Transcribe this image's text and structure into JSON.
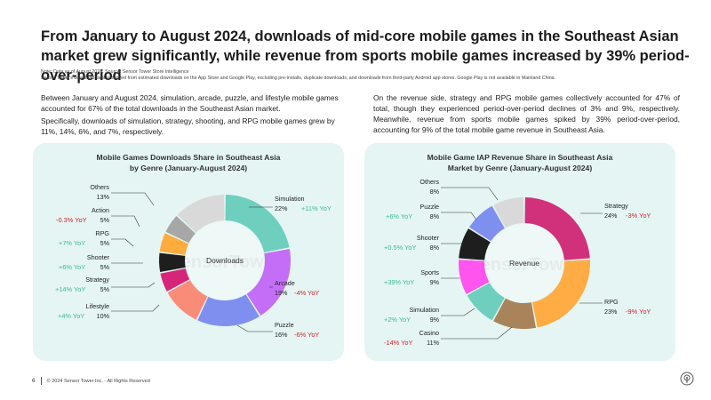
{
  "header": {
    "title": "From January to August 2024, downloads of mid-core mobile games in the Southeast Asian market grew significantly, while revenue from sports mobile games increased by 39% period-over-period",
    "note_line1": "Note: Data as of August 2024. Source: Sensor Tower Store Intelligence",
    "note_line2": "Sensor Tower's download data is derived from estimated downloads on the App Store and Google Play, excluding pre-installs, duplicate downloads, and downloads from third-party Android app stores. Google Play is not available in Mainland China."
  },
  "left_text": {
    "p1": "Between January and August 2024, simulation, arcade, puzzle, and lifestyle mobile games accounted for 67% of the total downloads in the Southeast Asian market.",
    "p2": "Specifically, downloads of simulation, strategy, shooting, and RPG mobile games grew by 11%, 14%, 6%, and 7%, respectively."
  },
  "right_text": {
    "p1": "On the revenue side, strategy and RPG mobile games collectively accounted for 47% of total, though they experienced period-over-period declines of 3% and 9%, respectively. Meanwhile, revenue from sports mobile games spiked by 39% period-over-period, accounting for 9% of the total mobile game revenue in Southeast Asia."
  },
  "watermark": "SensorTower",
  "chart_data": [
    {
      "type": "pie",
      "title_line1": "Mobile Games Downloads Share in Southeast Asia",
      "title_line2": "by Genre (January-August 2024)",
      "center_label": "Downloads",
      "slices": [
        {
          "name": "Simulation",
          "value": 22,
          "label": "22%",
          "yoy": "+11% YoY",
          "yoy_color": "#3dbb8f",
          "color": "#6fcfbe"
        },
        {
          "name": "Arcade",
          "value": 19,
          "label": "19%",
          "yoy": "-4% YoY",
          "yoy_color": "#d0242b",
          "color": "#c46ef7"
        },
        {
          "name": "Puzzle",
          "value": 16,
          "label": "16%",
          "yoy": "-6% YoY",
          "yoy_color": "#d0242b",
          "color": "#7f8ff0"
        },
        {
          "name": "Lifestyle",
          "value": 10,
          "label": "10%",
          "yoy": "+4% YoY",
          "yoy_color": "#3dbb8f",
          "color": "#f98c78"
        },
        {
          "name": "Strategy",
          "value": 5,
          "label": "5%",
          "yoy": "+14% YoY",
          "yoy_color": "#3dbb8f",
          "color": "#d6267a"
        },
        {
          "name": "Shooter",
          "value": 5,
          "label": "5%",
          "yoy": "+6% YoY",
          "yoy_color": "#3dbb8f",
          "color": "#1e1e1e"
        },
        {
          "name": "RPG",
          "value": 5,
          "label": "5%",
          "yoy": "+7% YoY",
          "yoy_color": "#3dbb8f",
          "color": "#ffac3f"
        },
        {
          "name": "Action",
          "value": 5,
          "label": "5%",
          "yoy": "-0.3% YoY",
          "yoy_color": "#d0242b",
          "color": "#a7a7a7"
        },
        {
          "name": "Others",
          "value": 13,
          "label": "13%",
          "yoy": "",
          "yoy_color": "#3dbb8f",
          "color": "#d9d9d9"
        }
      ]
    },
    {
      "type": "pie",
      "title_line1": "Mobile Game IAP Revenue Share in Southeast Asia",
      "title_line2": "Market by Genre (January-August 2024)",
      "center_label": "Revenue",
      "slices": [
        {
          "name": "Strategy",
          "value": 24,
          "label": "24%",
          "yoy": "-3% YoY",
          "yoy_color": "#d0242b",
          "color": "#d1317a"
        },
        {
          "name": "RPG",
          "value": 23,
          "label": "23%",
          "yoy": "-9% YoY",
          "yoy_color": "#d0242b",
          "color": "#ffac44"
        },
        {
          "name": "Casino",
          "value": 11,
          "label": "11%",
          "yoy": "-14% YoY",
          "yoy_color": "#d0242b",
          "color": "#a9845a"
        },
        {
          "name": "Simulation",
          "value": 9,
          "label": "9%",
          "yoy": "+2% YoY",
          "yoy_color": "#3dbb8f",
          "color": "#6fcfbe"
        },
        {
          "name": "Sports",
          "value": 9,
          "label": "9%",
          "yoy": "+39% YoY",
          "yoy_color": "#3dbb8f",
          "color": "#ff54ee"
        },
        {
          "name": "Shooter",
          "value": 8,
          "label": "8%",
          "yoy": "+0.5% YoY",
          "yoy_color": "#3dbb8f",
          "color": "#1e1e1e"
        },
        {
          "name": "Puzzle",
          "value": 8,
          "label": "8%",
          "yoy": "+6% YoY",
          "yoy_color": "#3dbb8f",
          "color": "#7f8ff0"
        },
        {
          "name": "Others",
          "value": 8,
          "label": "8%",
          "yoy": "",
          "yoy_color": "#3dbb8f",
          "color": "#d9d9d9"
        }
      ]
    }
  ],
  "footer": {
    "page_number": "6",
    "copyright": "© 2024 Sensor Tower Inc. - All Rights Reserved"
  }
}
